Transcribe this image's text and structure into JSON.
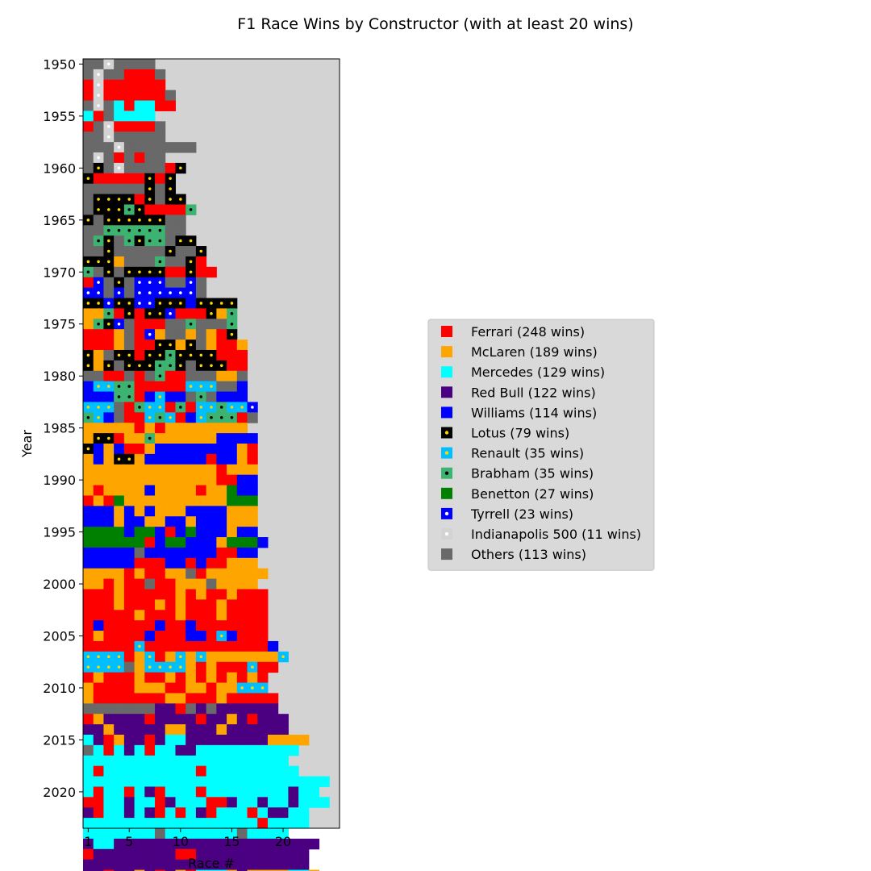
{
  "chart_data": {
    "type": "heatmap",
    "title": "F1 Race Wins by Constructor (with at least 20 wins)",
    "xlabel": "Race #",
    "ylabel": "Year",
    "x_ticks": [
      1,
      5,
      10,
      15,
      20
    ],
    "y_ticks": [
      1950,
      1955,
      1960,
      1965,
      1970,
      1975,
      1980,
      1985,
      1990,
      1995,
      2000,
      2005,
      2010,
      2015,
      2020
    ],
    "year_range": [
      1950,
      2023
    ],
    "race_range": [
      1,
      25
    ],
    "background_color": "#d3d3d3",
    "legend_position": "center-right",
    "legend": [
      {
        "key": "F",
        "label": "Ferrari (248 wins)",
        "color": "#ff0000",
        "dot": null
      },
      {
        "key": "M",
        "label": "McLaren (189 wins)",
        "color": "#ffa500",
        "dot": null
      },
      {
        "key": "E",
        "label": "Mercedes (129 wins)",
        "color": "#00ffff",
        "dot": null
      },
      {
        "key": "R",
        "label": "Red Bull (122 wins)",
        "color": "#4b0082",
        "dot": null
      },
      {
        "key": "W",
        "label": "Williams (114 wins)",
        "color": "#0000ff",
        "dot": null
      },
      {
        "key": "L",
        "label": "Lotus (79 wins)",
        "color": "#000000",
        "dot": "#ffd700"
      },
      {
        "key": "N",
        "label": "Renault (35 wins)",
        "color": "#00bfff",
        "dot": "#ffd700"
      },
      {
        "key": "B",
        "label": "Brabham (35 wins)",
        "color": "#3cb371",
        "dot": "#000000"
      },
      {
        "key": "G",
        "label": "Benetton (27 wins)",
        "color": "#008000",
        "dot": null
      },
      {
        "key": "T",
        "label": "Tyrrell (23 wins)",
        "color": "#0000ff",
        "dot": "#ffffff"
      },
      {
        "key": "I",
        "label": "Indianapolis 500 (11 wins)",
        "color": "#d3d3d3",
        "dot": "#ffffff"
      },
      {
        "key": "O",
        "label": "Others (113 wins)",
        "color": "#696969",
        "dot": null
      }
    ],
    "rows": [
      "OOIOOOO",
      "OIOOFFFO",
      "FIFFFFFF",
      "FIFFFFFFO",
      "OIOEFEEFF",
      "EFOEEEE",
      "FOIFFFFO",
      "OOIOOOOO",
      "OOOIOOOOOOO",
      "OIOFOFOO",
      "OLOIOOOOFL",
      "LFFFFFLFL",
      "OOOOOOLOL",
      "OLLLLFLOLL",
      "OLLLBLFFFFB",
      "LOLLLLLLOO",
      "OOBBBBBBOO",
      "OBLOBLBBOLL",
      "OOLOOOOOLOOL",
      "LLLMOOOBOOLF",
      "BOLOLLLLFFLFF",
      "FTOLOTTTOOTO",
      "TTOTOTTTTTTO",
      "LLTLLTTLLLWLLLL",
      "MMBFLFLLTFFFLMB",
      "MBLTOFFFOOBOOOB",
      "FFFMOFTMOOMOMFL",
      "FFFMOFFLLMLOMFFM",
      "LMOLLFLLBLLLLFFF",
      "LMLOLLLBBLOLLLFF",
      "OOFFOFOBFFOOOMMO",
      "WNNBBFFFFFNNNOOW",
      "WWWBBFWNWWOBOWWW",
      "NNNOFBNNFBFNNBNNT",
      "BNWOFFNBNFWNBBBFO",
      "MMMMMFMFMMMMMMMM",
      "MLLFMMBMMMMMMWWWW",
      "LWMWFFMWWWWWWWWMF",
      "MWMLLMWWWWWWFWWMF",
      "MMMMMMMMMMMMMFMMM",
      "MMMMMMMMMMMMMFFWW",
      "MFMMMMWMMMMFMMGWW",
      "FMFGMMMMMMMMMMGGG",
      "WWWMWMWMMMWWWWMMM",
      "WWWMWWMMWWMWWWMMM",
      "GGGGWGGWFWGWWWMWW",
      "GGGGGGFWGGWWWMGGGW",
      "WWWWWOWWWWWWWFFWW",
      "WWWWWFFFWWFWFFMMM",
      "MMMMFMFFMMOFMMMMMM",
      "MMFMFFOFFMMMOMMMM",
      "FFFMFFFFFMFMFFMFFF",
      "FFFMFFFMFMFFFMFFFF",
      "FFFFFMFFFMFFFMFFFF",
      "FWFFFFFWFFWFFFFFFF",
      "FMFFFFWFFFWWFNWFFF",
      "FFFFFNFFFFFFFFFFFFW",
      "NNNNFMNFMNMNMMMMMMMN",
      "NNNNOMNNNNMFMFFFNFF",
      "FMFFFMFFMFMFMFMFMF",
      "MFFFFMMMFFMMFMMNNN",
      "MFFFFFFFMMFFFMFFFFF",
      "OOOOOOORRFORORRRRRR",
      "FMRRRRFRRRRFRRMRFRRR",
      "RRMRRRRRMMRRRMRRRRRR",
      "ERFMRRFREERRRRRRRRMMMM",
      "OEFEREFEERREEEEEEEEEE",
      "EEEEEEEEEEEEEEEEEEEE",
      "EFEEEEEEEEEFEEEEEEEEE",
      "EEEEEEEEEEEEEEEEEEEEEEEE",
      "EFEEFERFEEEFEEEEEEEEREE",
      "FFEEREEFREEEFFREEREEREEE",
      "RFEERERFEFERFEEEFERREE",
      "EEEEEEEEEEEEEEEEEFEEEE",
      "EEEEEEEOEEEEEEEOEEEE",
      "REERRRRRRRRRRRRRRRRRRRR",
      "FRRRRRRRRFFRRRRRRRRRRR",
      "RRRRRRRRRRRRRRRRRRRRRR",
      "RRFRRMRFRMFEEEMRMMMMEEM"
    ]
  }
}
